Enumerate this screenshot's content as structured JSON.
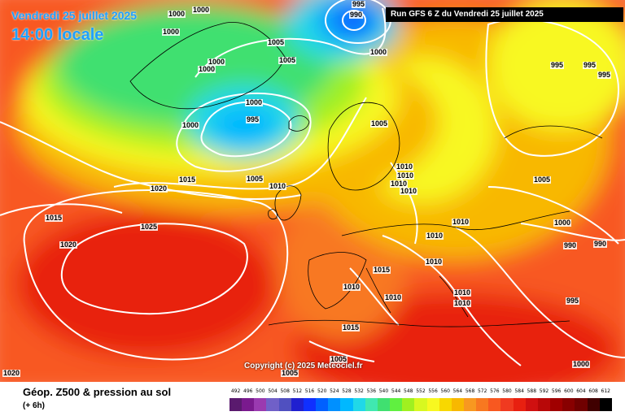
{
  "header": {
    "date": "Vendredi 25 juillet 2025",
    "time": "14:00 locale",
    "run": "Run GFS 6 Z du Vendredi 25 juillet 2025"
  },
  "copyright": "Copyright (c) 2025 Meteociel.fr",
  "legend": {
    "title": "Géop. Z500 & pression au sol",
    "subtitle": "(+ 6h)",
    "labels": [
      "492",
      "496",
      "500",
      "504",
      "508",
      "512",
      "516",
      "520",
      "524",
      "528",
      "532",
      "536",
      "540",
      "544",
      "548",
      "552",
      "556",
      "560",
      "564",
      "568",
      "572",
      "576",
      "580",
      "584",
      "588",
      "592",
      "596",
      "600",
      "604",
      "608",
      "612"
    ],
    "colors": [
      "#5a1a6e",
      "#7a1a8e",
      "#9a3ab0",
      "#7060c8",
      "#5050c0",
      "#2020d0",
      "#1030ff",
      "#0060ff",
      "#0090ff",
      "#00b8ff",
      "#20d8e8",
      "#40e8b0",
      "#40e070",
      "#60f040",
      "#a0f020",
      "#d8f820",
      "#f8f820",
      "#f8d800",
      "#f8b800",
      "#f89820",
      "#f87820",
      "#f85820",
      "#f03a20",
      "#e82010",
      "#d01010",
      "#b80808",
      "#a00000",
      "#880000",
      "#700000",
      "#400000",
      "#000000"
    ]
  },
  "isobars": [
    {
      "text": "995"
    },
    {
      "text": "990"
    },
    {
      "text": "1000"
    },
    {
      "text": "1000"
    },
    {
      "text": "1000"
    },
    {
      "text": "1005"
    },
    {
      "text": "1005"
    },
    {
      "text": "1000"
    },
    {
      "text": "1000"
    },
    {
      "text": "1000"
    },
    {
      "text": "995"
    },
    {
      "text": "1000"
    },
    {
      "text": "1000"
    },
    {
      "text": "995"
    },
    {
      "text": "995"
    },
    {
      "text": "995"
    },
    {
      "text": "1005"
    },
    {
      "text": "1010"
    },
    {
      "text": "1010"
    },
    {
      "text": "1010"
    },
    {
      "text": "1010"
    },
    {
      "text": "1015"
    },
    {
      "text": "1020"
    },
    {
      "text": "1015"
    },
    {
      "text": "1025"
    },
    {
      "text": "1020"
    },
    {
      "text": "1005"
    },
    {
      "text": "1005"
    },
    {
      "text": "1000"
    },
    {
      "text": "990"
    },
    {
      "text": "990"
    },
    {
      "text": "1010"
    },
    {
      "text": "1010"
    },
    {
      "text": "1010"
    },
    {
      "text": "1015"
    },
    {
      "text": "1010"
    },
    {
      "text": "1010"
    },
    {
      "text": "1010"
    },
    {
      "text": "1010"
    },
    {
      "text": "1015"
    },
    {
      "text": "995"
    },
    {
      "text": "1010"
    },
    {
      "text": "1005"
    },
    {
      "text": "1005"
    },
    {
      "text": "1000"
    },
    {
      "text": "1020"
    }
  ]
}
